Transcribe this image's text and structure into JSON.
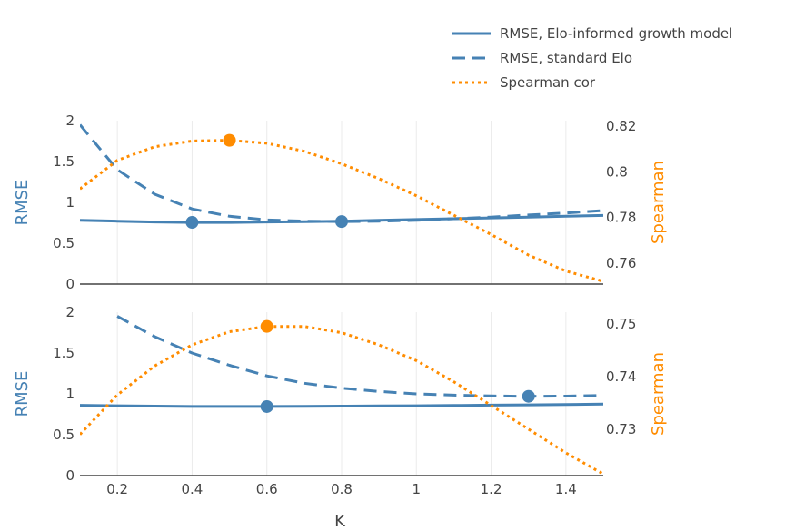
{
  "colors": {
    "rmse": "#4682b4",
    "spearman": "#ff8c00",
    "grid": "#ebebeb",
    "axis": "#444444"
  },
  "legend": [
    {
      "label": "RMSE, Elo-informed growth model",
      "style": "solid",
      "color": "#4682b4"
    },
    {
      "label": "RMSE, standard Elo",
      "style": "dashed",
      "color": "#4682b4"
    },
    {
      "label": "Spearman cor",
      "style": "dotted",
      "color": "#ff8c00"
    }
  ],
  "xlabel": "K",
  "chart_data": [
    {
      "type": "line",
      "xlabel": "K",
      "ylabel": "RMSE",
      "y2label": "Spearman",
      "xlim": [
        0.1,
        1.5
      ],
      "ylim": [
        0,
        2
      ],
      "y2lim": [
        0.7508,
        0.8224
      ],
      "xticks": [
        "0.2",
        "0.4",
        "0.6",
        "0.8",
        "1",
        "1.2",
        "1.4"
      ],
      "yticks": [
        "0",
        "0.5",
        "1",
        "1.5",
        "2"
      ],
      "y2ticks": [
        "0.76",
        "0.78",
        "0.8",
        "0.82"
      ],
      "series": [
        {
          "name": "RMSE, Elo-informed growth model",
          "axis": "y",
          "style": "solid",
          "x": [
            0.1,
            0.2,
            0.3,
            0.4,
            0.5,
            0.6,
            0.7,
            0.8,
            0.9,
            1.0,
            1.1,
            1.2,
            1.3,
            1.4,
            1.5
          ],
          "y": [
            0.78,
            0.77,
            0.76,
            0.755,
            0.755,
            0.76,
            0.765,
            0.77,
            0.78,
            0.79,
            0.8,
            0.81,
            0.82,
            0.83,
            0.84
          ],
          "marker": {
            "x": 0.4,
            "y": 0.755
          }
        },
        {
          "name": "RMSE, standard Elo",
          "axis": "y",
          "style": "dashed",
          "x": [
            0.1,
            0.2,
            0.3,
            0.4,
            0.5,
            0.6,
            0.7,
            0.8,
            0.9,
            1.0,
            1.1,
            1.2,
            1.3,
            1.4,
            1.5
          ],
          "y": [
            1.95,
            1.4,
            1.1,
            0.92,
            0.83,
            0.785,
            0.77,
            0.765,
            0.77,
            0.78,
            0.8,
            0.82,
            0.845,
            0.87,
            0.9
          ],
          "marker": {
            "x": 0.8,
            "y": 0.765
          }
        },
        {
          "name": "Spearman cor",
          "axis": "y2",
          "style": "dotted",
          "x": [
            0.1,
            0.2,
            0.3,
            0.4,
            0.5,
            0.6,
            0.7,
            0.8,
            0.9,
            1.0,
            1.1,
            1.2,
            1.3,
            1.4,
            1.5
          ],
          "y": [
            0.7925,
            0.805,
            0.811,
            0.8135,
            0.8138,
            0.8125,
            0.809,
            0.8035,
            0.797,
            0.7895,
            0.781,
            0.7725,
            0.7635,
            0.7565,
            0.752
          ],
          "marker": {
            "x": 0.5,
            "y": 0.8138
          }
        }
      ]
    },
    {
      "type": "line",
      "xlabel": "K",
      "ylabel": "RMSE",
      "y2label": "Spearman",
      "xlim": [
        0.1,
        1.5
      ],
      "ylim": [
        0,
        2
      ],
      "y2lim": [
        0.7212,
        0.7522
      ],
      "xticks": [
        "0.2",
        "0.4",
        "0.6",
        "0.8",
        "1",
        "1.2",
        "1.4"
      ],
      "yticks": [
        "0",
        "0.5",
        "1",
        "1.5",
        "2"
      ],
      "y2ticks": [
        "0.73",
        "0.74",
        "0.75"
      ],
      "series": [
        {
          "name": "RMSE, Elo-informed growth model",
          "axis": "y",
          "style": "solid",
          "x": [
            0.1,
            0.2,
            0.3,
            0.4,
            0.5,
            0.6,
            0.7,
            0.8,
            0.9,
            1.0,
            1.1,
            1.2,
            1.3,
            1.4,
            1.5
          ],
          "y": [
            0.86,
            0.855,
            0.85,
            0.845,
            0.845,
            0.845,
            0.847,
            0.85,
            0.852,
            0.855,
            0.858,
            0.862,
            0.866,
            0.87,
            0.875
          ],
          "marker": {
            "x": 0.6,
            "y": 0.845
          }
        },
        {
          "name": "RMSE, standard Elo",
          "axis": "y",
          "style": "dashed",
          "x": [
            0.2,
            0.3,
            0.4,
            0.5,
            0.6,
            0.7,
            0.8,
            0.9,
            1.0,
            1.1,
            1.2,
            1.3,
            1.4,
            1.5
          ],
          "y": [
            1.95,
            1.7,
            1.5,
            1.35,
            1.22,
            1.13,
            1.07,
            1.03,
            1.0,
            0.985,
            0.975,
            0.97,
            0.972,
            0.98
          ],
          "marker": {
            "x": 1.3,
            "y": 0.97
          }
        },
        {
          "name": "Spearman cor",
          "axis": "y2",
          "style": "dotted",
          "x": [
            0.1,
            0.2,
            0.3,
            0.4,
            0.5,
            0.6,
            0.7,
            0.8,
            0.9,
            1.0,
            1.1,
            1.2,
            1.3,
            1.4,
            1.5
          ],
          "y": [
            0.729,
            0.7365,
            0.742,
            0.746,
            0.7485,
            0.7495,
            0.7495,
            0.7483,
            0.746,
            0.743,
            0.739,
            0.7345,
            0.73,
            0.7255,
            0.7215
          ],
          "marker": {
            "x": 0.6,
            "y": 0.7495
          }
        }
      ]
    }
  ]
}
